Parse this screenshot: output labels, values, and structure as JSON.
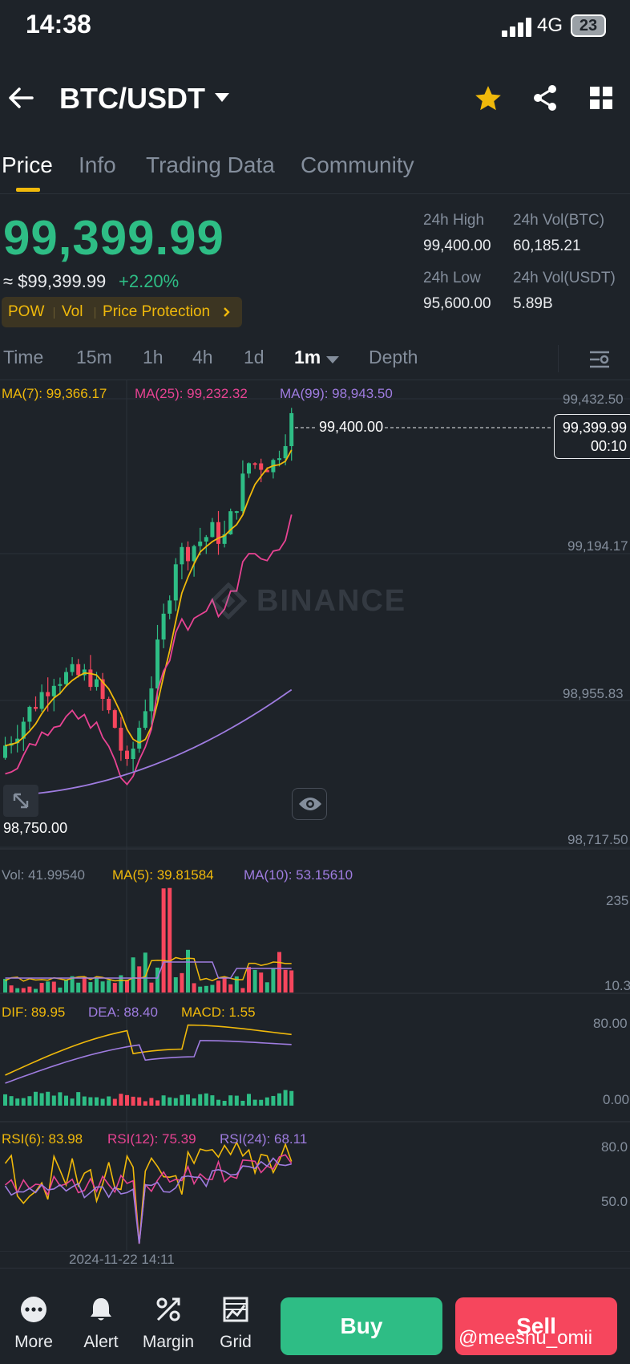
{
  "status_bar": {
    "time": "14:38",
    "network": "4G",
    "battery": "23"
  },
  "header": {
    "pair": "BTC/USDT"
  },
  "tabs": [
    {
      "label": "Price",
      "active": true
    },
    {
      "label": "Info",
      "active": false
    },
    {
      "label": "Trading Data",
      "active": false
    },
    {
      "label": "Community",
      "active": false
    }
  ],
  "ticker": {
    "last_price": "99,399.99",
    "fiat_price": "≈ $99,399.99",
    "change_pct": "+2.20%",
    "tags": [
      "POW",
      "Vol",
      "Price Protection"
    ],
    "stats": {
      "high_label": "24h High",
      "high": "99,400.00",
      "vol_btc_label": "24h Vol(BTC)",
      "vol_btc": "60,185.21",
      "low_label": "24h Low",
      "low": "95,600.00",
      "vol_usdt_label": "24h Vol(USDT)",
      "vol_usdt": "5.89B"
    }
  },
  "intervals": {
    "items": [
      "Time",
      "15m",
      "1h",
      "4h",
      "1d",
      "1m",
      "Depth"
    ],
    "active": "1m"
  },
  "candle_panel": {
    "ma7": "MA(7): 99,366.17",
    "ma25": "MA(25): 99,232.32",
    "ma99": "MA(99): 98,943.50",
    "y_ticks": [
      "99,432.50",
      "99,194.17",
      "98,955.83",
      "98,717.50"
    ],
    "high_marker": "99,400.00",
    "last_price": "99,399.99",
    "countdown": "00:10",
    "low_marker": "98,750.00",
    "watermark": "BINANCE"
  },
  "volume_panel": {
    "vol": "Vol: 41.99540",
    "ma5": "MA(5): 39.81584",
    "ma10": "MA(10): 53.15610",
    "y_ticks": [
      "235",
      "10.3"
    ]
  },
  "macd_panel": {
    "dif": "DIF: 89.95",
    "dea": "DEA: 88.40",
    "macd": "MACD: 1.55",
    "y_ticks": [
      "80.00",
      "0.00"
    ]
  },
  "rsi_panel": {
    "rsi6": "RSI(6): 83.98",
    "rsi12": "RSI(12): 75.39",
    "rsi24": "RSI(24): 68.11",
    "y_ticks": [
      "80.0",
      "50.0"
    ]
  },
  "x_axis": {
    "date": "2024-11-22 14:11"
  },
  "bottom_nav": {
    "items": [
      {
        "label": "More",
        "icon": "more-icon"
      },
      {
        "label": "Alert",
        "icon": "bell-icon"
      },
      {
        "label": "Margin",
        "icon": "percent-icon"
      },
      {
        "label": "Grid",
        "icon": "grid-bot-icon"
      }
    ],
    "buy": "Buy",
    "sell": "Sell"
  },
  "credit": "@meeshu_omii",
  "colors": {
    "up": "#2ebd85",
    "down": "#f6465d",
    "accent": "#f0b90b",
    "ma25": "#e84393",
    "ma99": "#9f7ce0"
  }
}
